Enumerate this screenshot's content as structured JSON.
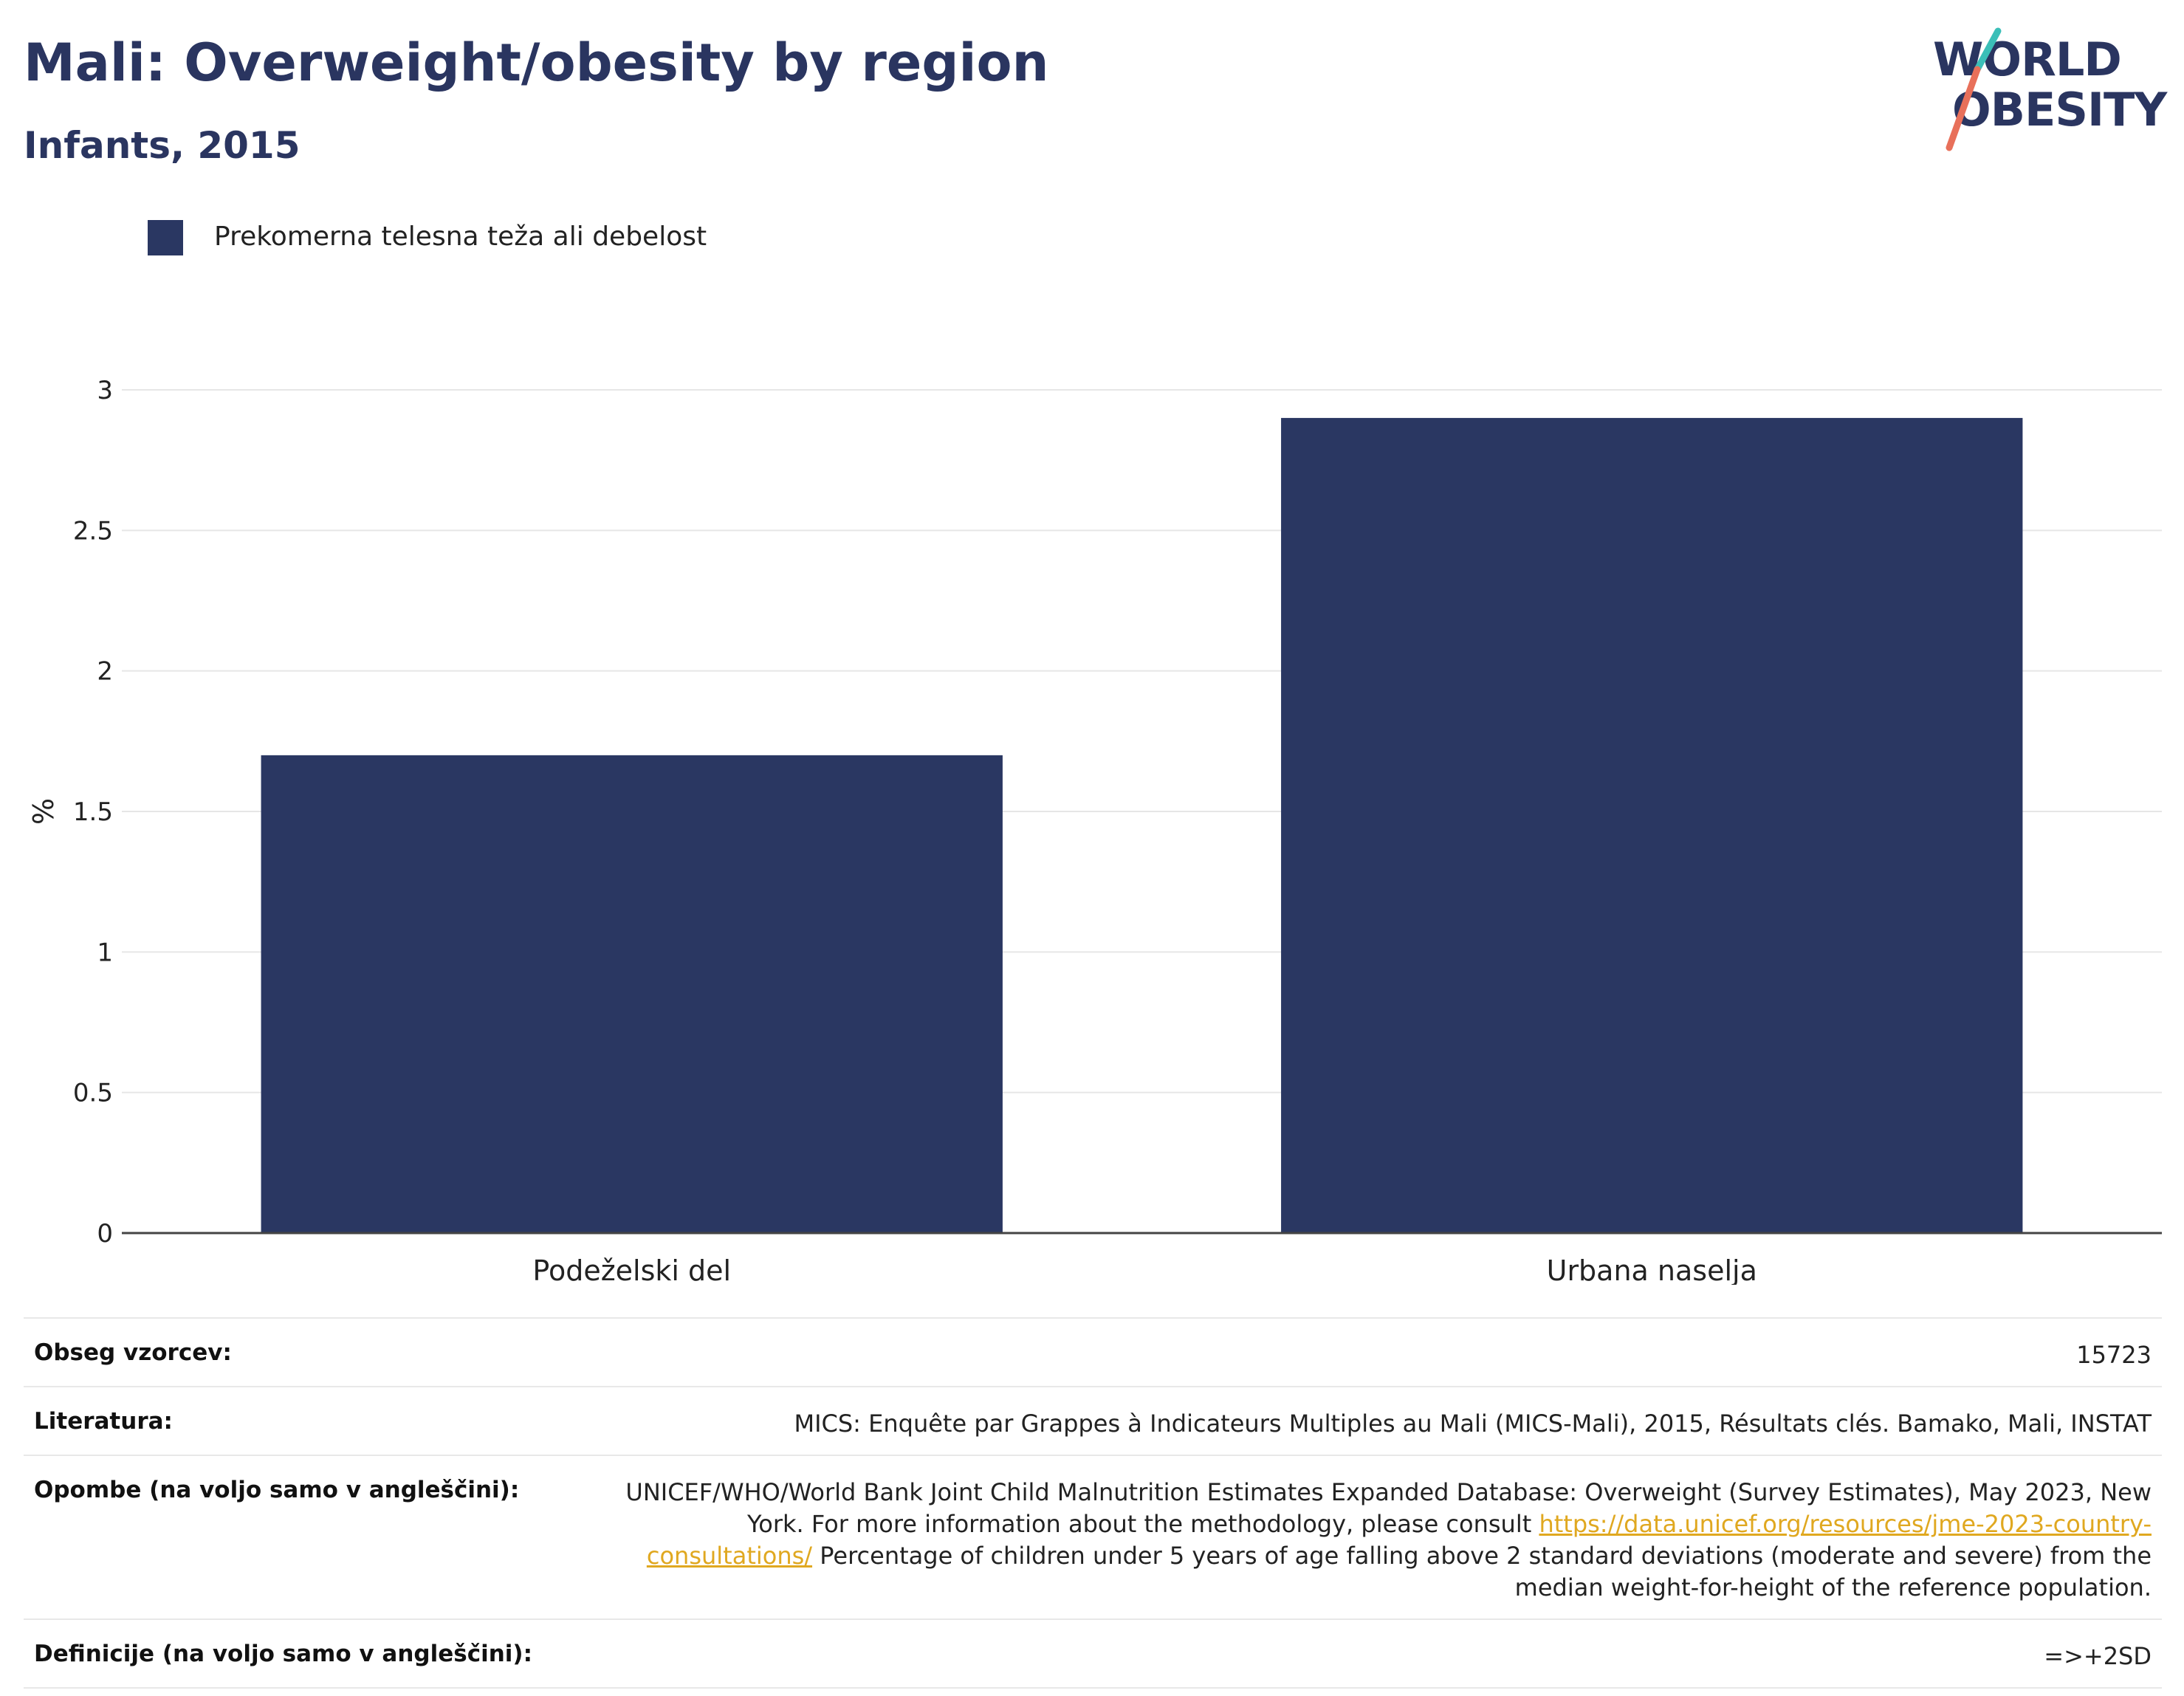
{
  "header": {
    "title": "Mali: Overweight/obesity by region",
    "subtitle": "Infants, 2015"
  },
  "logo": {
    "line1": "WORLD",
    "line2": "OBESITY",
    "colors": {
      "text": "#2a3560",
      "slash_top": "#3bbfb8",
      "slash_bottom": "#e8705a"
    }
  },
  "legend": {
    "label": "Prekomerna telesna teža ali debelost",
    "color": "#2a3762"
  },
  "chart_data": {
    "type": "bar",
    "categories": [
      "Podeželski del",
      "Urbana naselja"
    ],
    "series": [
      {
        "name": "Prekomerna telesna teža ali debelost",
        "values": [
          1.7,
          2.9
        ],
        "color": "#2a3762"
      }
    ],
    "ylabel": "%",
    "xlabel": "",
    "ylim": [
      0,
      3
    ],
    "yticks": [
      0,
      0.5,
      1,
      1.5,
      2,
      2.5,
      3
    ],
    "ytick_labels": [
      "0",
      "0.5",
      "1",
      "1.5",
      "2",
      "2.5",
      "3"
    ],
    "grid": true,
    "legend_position": "top-left"
  },
  "info": {
    "sample": {
      "key": "Obseg vzorcev:",
      "value": "15723"
    },
    "literature": {
      "key": "Literatura:",
      "value": "MICS: Enquête par Grappes à Indicateurs Multiples au Mali (MICS-Mali), 2015, Résultats clés. Bamako, Mali, INSTAT"
    },
    "notes": {
      "key": "Opombe (na voljo samo v angleščini):",
      "text_before": "UNICEF/WHO/World Bank Joint Child Malnutrition Estimates Expanded Database: Overweight (Survey Estimates), May 2023, New York. For more information about the methodology, please consult ",
      "link": "https://data.unicef.org/resources/jme-2023-country-consultations/",
      "text_after": " Percentage of children under 5 years of age falling above 2 standard deviations (moderate and severe) from the median weight-for-height of the reference population."
    },
    "definitions": {
      "key": "Definicije (na voljo samo v angleščini):",
      "value": "=>+2SD"
    }
  }
}
